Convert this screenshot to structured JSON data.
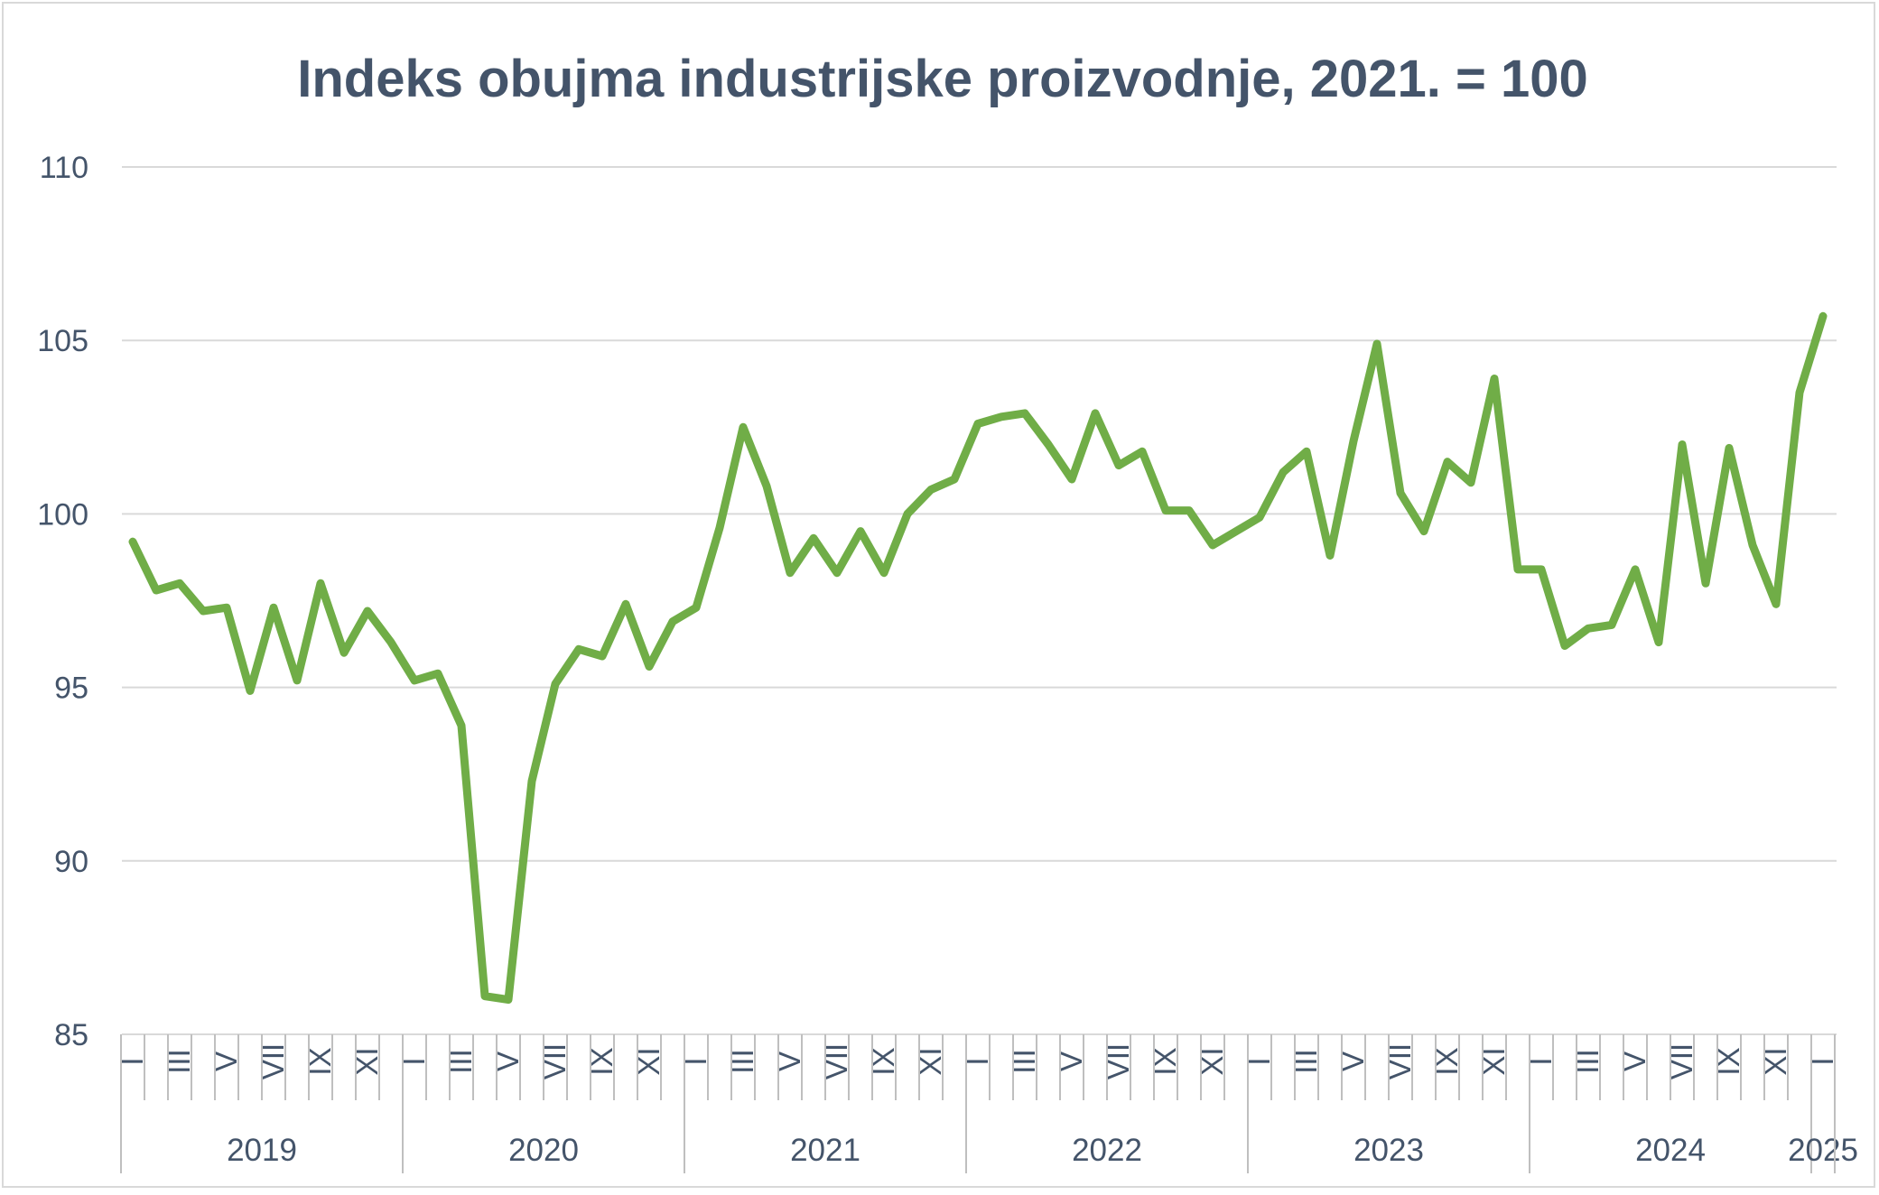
{
  "chart_data": {
    "type": "line",
    "title": "Indeks obujma industrijske proizvodnje, 2021. = 100",
    "xlabel": "",
    "ylabel": "",
    "ylim": [
      85,
      110
    ],
    "yticks": [
      "85",
      "90",
      "95",
      "100",
      "105",
      "110"
    ],
    "grid": true,
    "legend": "none",
    "color": "#70ad47",
    "month_labels": [
      "I",
      "III",
      "V",
      "VII",
      "IX",
      "XI"
    ],
    "years": [
      {
        "label": "2019",
        "months": 12
      },
      {
        "label": "2020",
        "months": 12
      },
      {
        "label": "2021",
        "months": 12
      },
      {
        "label": "2022",
        "months": 12
      },
      {
        "label": "2023",
        "months": 12
      },
      {
        "label": "2024",
        "months": 12
      },
      {
        "label": "2025",
        "months": 1
      }
    ],
    "series": [
      {
        "values": [
          99.2,
          97.8,
          98.0,
          97.2,
          97.3,
          94.9,
          97.3,
          95.2,
          98.0,
          96.0,
          97.2,
          96.3,
          95.2,
          95.4,
          93.9,
          86.1,
          86.0,
          92.3,
          95.1,
          96.1,
          95.9,
          97.4,
          95.6,
          96.9,
          97.3,
          99.6,
          102.5,
          100.8,
          98.3,
          99.3,
          98.3,
          99.5,
          98.3,
          100.0,
          100.7,
          101.0,
          102.6,
          102.8,
          102.9,
          102.0,
          101.0,
          102.9,
          101.4,
          101.8,
          100.1,
          100.1,
          99.1,
          99.5,
          99.9,
          101.2,
          101.8,
          98.8,
          102.1,
          104.9,
          100.6,
          99.5,
          101.5,
          100.9,
          103.9,
          98.4,
          98.4,
          96.2,
          96.7,
          96.8,
          98.4,
          96.3,
          102.0,
          98.0,
          101.9,
          99.1,
          97.4,
          103.5,
          105.7
        ]
      }
    ]
  }
}
